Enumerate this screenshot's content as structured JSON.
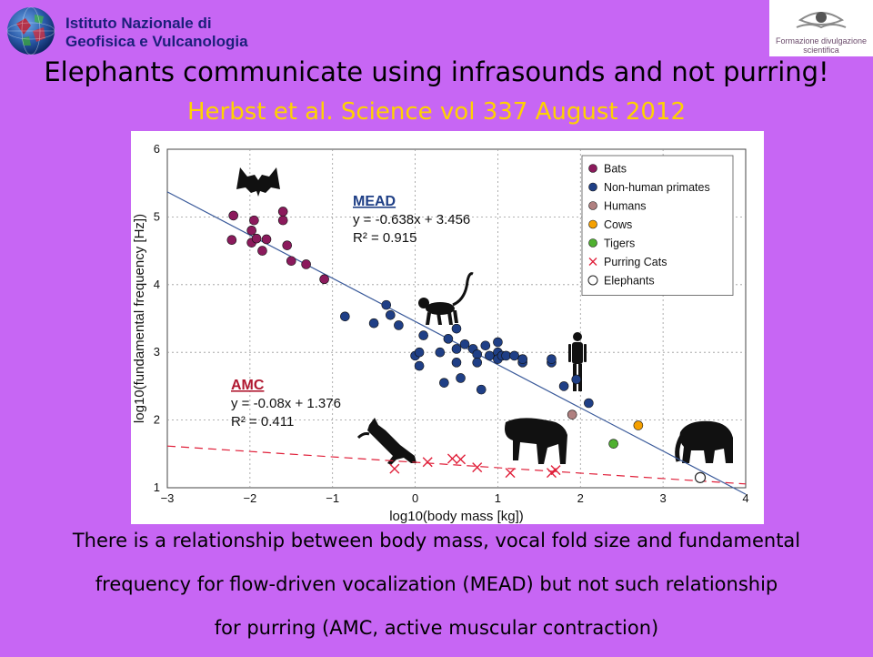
{
  "header": {
    "org_line1": "Istituto Nazionale di",
    "org_line2": "Geofisica e Vulcanologia",
    "right_logo_line1": "Formazione divulgazione",
    "right_logo_line2": "scientifica"
  },
  "slide": {
    "title": "Elephants communicate using infrasounds and not purring!",
    "subtitle": "Herbst et al. Science vol 337  August 2012",
    "caption_lines": [
      "There is a relationship between body mass, vocal fold size and fundamental",
      "frequency for flow-driven vocalization (MEAD) but not such relationship",
      "for purring (AMC, active muscular contraction)"
    ]
  },
  "chart_data": {
    "type": "scatter",
    "xlabel": "log10(body mass [kg])",
    "ylabel": "log10(fundamental frequency [Hz])",
    "xlim": [
      -3,
      4
    ],
    "ylim": [
      1,
      6
    ],
    "xticks": [
      -3,
      -2,
      -1,
      0,
      1,
      2,
      3,
      4
    ],
    "yticks": [
      1,
      2,
      3,
      4,
      5,
      6
    ],
    "grid": true,
    "legend_position": "top-right",
    "series": [
      {
        "name": "Bats",
        "marker": "circle",
        "color": "#8b1a5c",
        "points": [
          [
            -2.2,
            5.02
          ],
          [
            -2.22,
            4.66
          ],
          [
            -1.98,
            4.8
          ],
          [
            -1.95,
            4.95
          ],
          [
            -1.98,
            4.62
          ],
          [
            -1.92,
            4.68
          ],
          [
            -1.85,
            4.5
          ],
          [
            -1.8,
            4.67
          ],
          [
            -1.6,
            5.08
          ],
          [
            -1.6,
            4.95
          ],
          [
            -1.55,
            4.58
          ],
          [
            -1.5,
            4.35
          ],
          [
            -1.32,
            4.3
          ],
          [
            -1.1,
            4.08
          ]
        ]
      },
      {
        "name": "Non-human primates",
        "marker": "circle",
        "color": "#1f3f86",
        "points": [
          [
            -0.85,
            3.53
          ],
          [
            -0.5,
            3.43
          ],
          [
            -0.35,
            3.7
          ],
          [
            -0.3,
            3.55
          ],
          [
            -0.2,
            3.4
          ],
          [
            0.0,
            2.95
          ],
          [
            0.05,
            3.0
          ],
          [
            0.05,
            2.8
          ],
          [
            0.1,
            3.25
          ],
          [
            0.3,
            3.0
          ],
          [
            0.35,
            2.55
          ],
          [
            0.4,
            3.2
          ],
          [
            0.5,
            3.35
          ],
          [
            0.5,
            3.05
          ],
          [
            0.5,
            2.85
          ],
          [
            0.55,
            2.62
          ],
          [
            0.6,
            3.12
          ],
          [
            0.7,
            3.05
          ],
          [
            0.75,
            2.97
          ],
          [
            0.75,
            2.85
          ],
          [
            0.8,
            2.45
          ],
          [
            0.85,
            3.1
          ],
          [
            0.9,
            2.95
          ],
          [
            1.0,
            3.0
          ],
          [
            1.0,
            3.15
          ],
          [
            1.0,
            2.9
          ],
          [
            1.05,
            2.95
          ],
          [
            1.1,
            2.95
          ],
          [
            1.2,
            2.95
          ],
          [
            1.3,
            2.9
          ],
          [
            1.3,
            2.85
          ],
          [
            1.3,
            2.9
          ],
          [
            1.65,
            2.85
          ],
          [
            1.65,
            2.9
          ],
          [
            1.8,
            2.5
          ],
          [
            1.95,
            2.6
          ],
          [
            2.1,
            2.25
          ]
        ]
      },
      {
        "name": "Humans",
        "marker": "circle",
        "color": "#b08080",
        "points": [
          [
            1.9,
            2.08
          ]
        ]
      },
      {
        "name": "Cows",
        "marker": "circle",
        "color": "#f5a000",
        "points": [
          [
            2.7,
            1.92
          ]
        ]
      },
      {
        "name": "Tigers",
        "marker": "circle",
        "color": "#4fb030",
        "points": [
          [
            2.4,
            1.65
          ]
        ]
      },
      {
        "name": "Purring Cats",
        "marker": "x",
        "color": "#e0203a",
        "points": [
          [
            -0.25,
            1.28
          ],
          [
            0.15,
            1.38
          ],
          [
            0.45,
            1.43
          ],
          [
            0.55,
            1.42
          ],
          [
            0.75,
            1.3
          ],
          [
            1.15,
            1.22
          ],
          [
            1.65,
            1.22
          ],
          [
            1.7,
            1.26
          ]
        ]
      },
      {
        "name": "Elephants",
        "marker": "open-circle",
        "color": "#222222",
        "points": [
          [
            3.45,
            1.15
          ]
        ]
      }
    ],
    "fits": [
      {
        "name": "MEAD",
        "equation": "y = -0.638x + 3.456",
        "r2": "R² = 0.915",
        "slope": -0.638,
        "intercept": 3.456,
        "style": "solid",
        "color": "#3a5a9a",
        "label_color": "#1f3f86"
      },
      {
        "name": "AMC",
        "equation": "y = -0.08x + 1.376",
        "r2": "R² = 0.411",
        "slope": -0.08,
        "intercept": 1.376,
        "style": "dashed",
        "color": "#e0203a",
        "label_color": "#b01830"
      }
    ]
  },
  "colors": {
    "background": "#c766f4",
    "subtitle": "#ffd200",
    "org_text": "#1b1f7a"
  }
}
